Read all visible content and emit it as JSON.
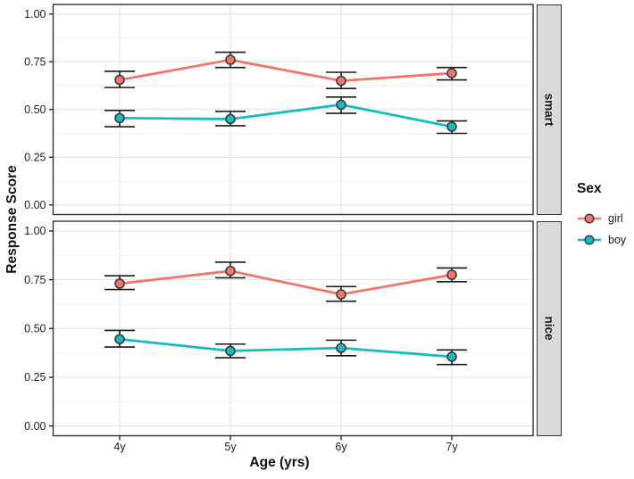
{
  "colors": {
    "background": "#FFFFFF",
    "girl": "#F3756C",
    "boy": "#16BCC2",
    "errorbar": "#1A1A1A",
    "point_stroke": "#3A3A3A",
    "grid_major": "#E4E4E4",
    "grid_minor": "#F2F2F2",
    "panel_border": "#333333",
    "tick": "#1A1A1A",
    "text": "#1F1F1F",
    "strip_fill": "#DADADA"
  },
  "chart_data": {
    "type": "line",
    "title": "",
    "xlabel": "Age (yrs)",
    "ylabel": "Response Score",
    "categories": [
      "4y",
      "5y",
      "6y",
      "7y"
    ],
    "ylim": [
      0,
      1
    ],
    "y_tick_labels": [
      "0.00",
      "0.25",
      "0.50",
      "0.75",
      "1.00"
    ],
    "y_tick_values": [
      0,
      0.25,
      0.5,
      0.75,
      1
    ],
    "y_minor_values": [
      0.125,
      0.375,
      0.625,
      0.875
    ],
    "grid": true,
    "error_bars": true,
    "legend": {
      "title": "Sex",
      "position": "right",
      "items": [
        "girl",
        "boy"
      ]
    },
    "facets": [
      {
        "label": "smart",
        "series": [
          {
            "name": "girl",
            "color": "#F3756C",
            "values": [
              0.655,
              0.76,
              0.65,
              0.69
            ],
            "error_low": [
              0.615,
              0.72,
              0.61,
              0.655
            ],
            "error_high": [
              0.7,
              0.8,
              0.695,
              0.72
            ]
          },
          {
            "name": "boy",
            "color": "#16BCC2",
            "values": [
              0.455,
              0.45,
              0.525,
              0.41
            ],
            "error_low": [
              0.41,
              0.415,
              0.48,
              0.375
            ],
            "error_high": [
              0.495,
              0.49,
              0.565,
              0.44
            ]
          }
        ]
      },
      {
        "label": "nice",
        "series": [
          {
            "name": "girl",
            "color": "#F3756C",
            "values": [
              0.73,
              0.795,
              0.675,
              0.775
            ],
            "error_low": [
              0.7,
              0.76,
              0.64,
              0.74
            ],
            "error_high": [
              0.77,
              0.84,
              0.715,
              0.81
            ]
          },
          {
            "name": "boy",
            "color": "#16BCC2",
            "values": [
              0.445,
              0.385,
              0.4,
              0.355
            ],
            "error_low": [
              0.405,
              0.35,
              0.36,
              0.315
            ],
            "error_high": [
              0.49,
              0.42,
              0.44,
              0.39
            ]
          }
        ]
      }
    ]
  }
}
